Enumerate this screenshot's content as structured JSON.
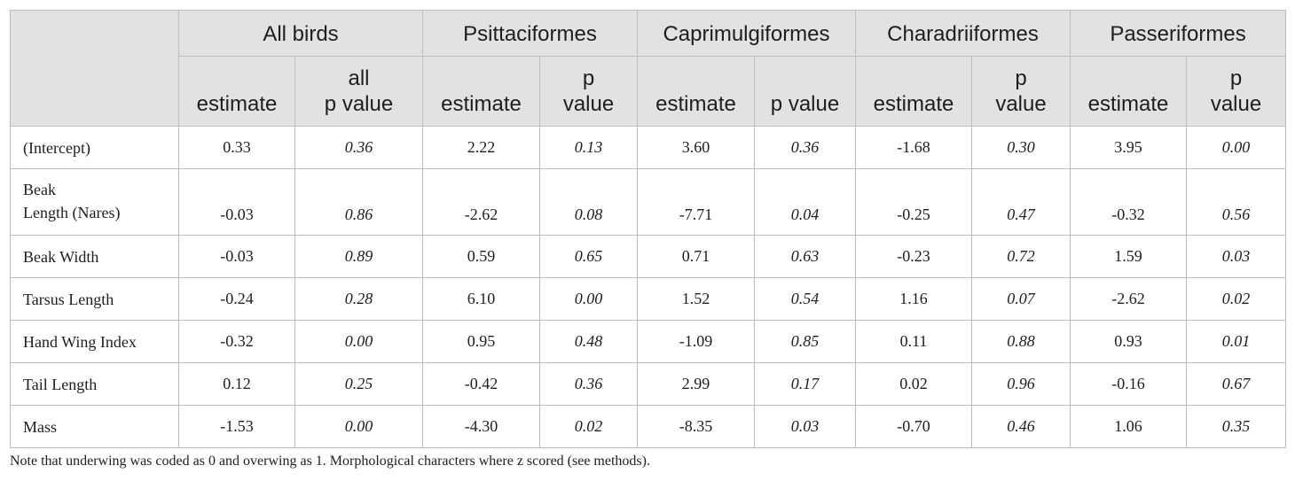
{
  "header": {
    "groups": [
      "All birds",
      "Psittaciformes",
      "Caprimulgiformes",
      "Charadriiformes",
      "Passeriformes"
    ],
    "subheaders": [
      [
        "estimate",
        "all\np value"
      ],
      [
        "estimate",
        "p\nvalue"
      ],
      [
        "estimate",
        "p value"
      ],
      [
        "estimate",
        "p\nvalue"
      ],
      [
        "estimate",
        "p\nvalue"
      ]
    ]
  },
  "rows": [
    {
      "label": "(Intercept)",
      "cells": [
        "0.33",
        "0.36",
        "2.22",
        "0.13",
        "3.60",
        "0.36",
        "-1.68",
        "0.30",
        "3.95",
        "0.00"
      ]
    },
    {
      "label": "Beak\nLength (Nares)",
      "cells": [
        "-0.03",
        "0.86",
        "-2.62",
        "0.08",
        "-7.71",
        "0.04",
        "-0.25",
        "0.47",
        "-0.32",
        "0.56"
      ]
    },
    {
      "label": "Beak Width",
      "cells": [
        "-0.03",
        "0.89",
        "0.59",
        "0.65",
        "0.71",
        "0.63",
        "-0.23",
        "0.72",
        "1.59",
        "0.03"
      ]
    },
    {
      "label": "Tarsus Length",
      "cells": [
        "-0.24",
        "0.28",
        "6.10",
        "0.00",
        "1.52",
        "0.54",
        "1.16",
        "0.07",
        "-2.62",
        "0.02"
      ]
    },
    {
      "label": "Hand Wing Index",
      "cells": [
        "-0.32",
        "0.00",
        "0.95",
        "0.48",
        "-1.09",
        "0.85",
        "0.11",
        "0.88",
        "0.93",
        "0.01"
      ]
    },
    {
      "label": "Tail Length",
      "cells": [
        "0.12",
        "0.25",
        "-0.42",
        "0.36",
        "2.99",
        "0.17",
        "0.02",
        "0.96",
        "-0.16",
        "0.67"
      ]
    },
    {
      "label": "Mass",
      "cells": [
        "-1.53",
        "0.00",
        "-4.30",
        "0.02",
        "-8.35",
        "0.03",
        "-0.70",
        "0.46",
        "1.06",
        "0.35"
      ]
    }
  ],
  "note": "Note that underwing was coded as 0 and overwing as 1. Morphological characters where z scored (see methods)."
}
